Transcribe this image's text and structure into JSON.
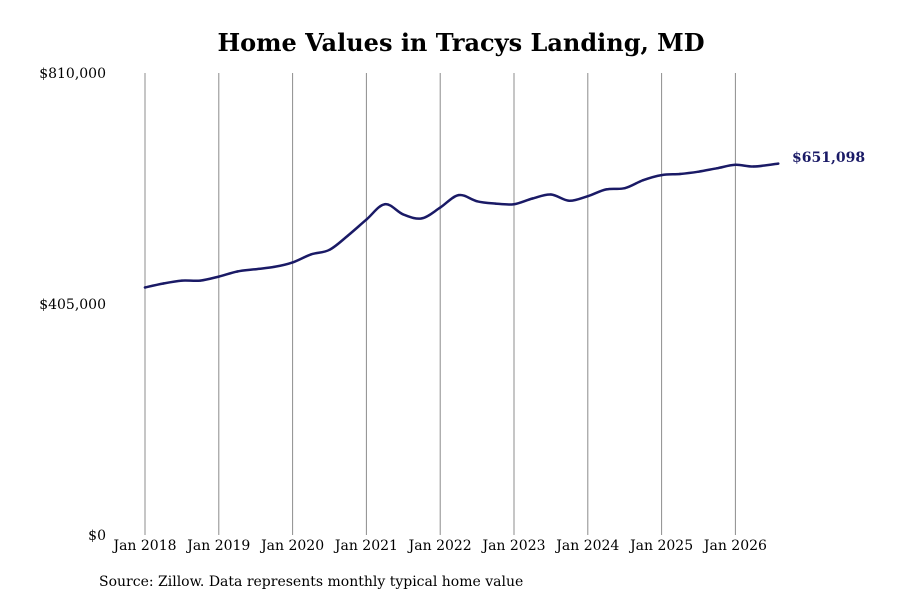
{
  "chart_data": {
    "type": "line",
    "title": "Home Values in Tracys Landing, MD",
    "xlabel": "",
    "ylabel": "",
    "ylim": [
      0,
      810000
    ],
    "y_ticks": [
      0,
      405000,
      810000
    ],
    "y_tick_labels": [
      "$0",
      "$405,000",
      "$810,000"
    ],
    "x_ticks": [
      2018,
      2019,
      2020,
      2021,
      2022,
      2023,
      2024,
      2025,
      2026
    ],
    "x_tick_labels": [
      "Jan 2018",
      "Jan 2019",
      "Jan 2020",
      "Jan 2021",
      "Jan 2022",
      "Jan 2023",
      "Jan 2024",
      "Jan 2025",
      "Jan 2026"
    ],
    "grid": "vertical",
    "line_color": "#1a1a66",
    "series": [
      {
        "name": "",
        "x": [
          2018.0,
          2018.25,
          2018.5,
          2018.75,
          2019.0,
          2019.25,
          2019.5,
          2019.75,
          2020.0,
          2020.25,
          2020.5,
          2020.75,
          2021.0,
          2021.25,
          2021.5,
          2021.75,
          2022.0,
          2022.25,
          2022.5,
          2022.75,
          2023.0,
          2023.25,
          2023.5,
          2023.75,
          2024.0,
          2024.25,
          2024.5,
          2024.75,
          2025.0,
          2025.25,
          2025.5,
          2025.75,
          2026.0,
          2026.25,
          2026.58
        ],
        "values": [
          434000,
          441000,
          446000,
          446000,
          453000,
          462000,
          466000,
          470000,
          478000,
          492000,
          500000,
          525000,
          553000,
          580000,
          562000,
          555000,
          574000,
          596000,
          585000,
          581000,
          580000,
          590000,
          597000,
          586000,
          594000,
          606000,
          608000,
          622000,
          631000,
          633000,
          637000,
          643000,
          649000,
          646000,
          651098
        ]
      }
    ],
    "end_label": "$651,098",
    "source_note": "Source: Zillow. Data represents monthly typical home value"
  }
}
